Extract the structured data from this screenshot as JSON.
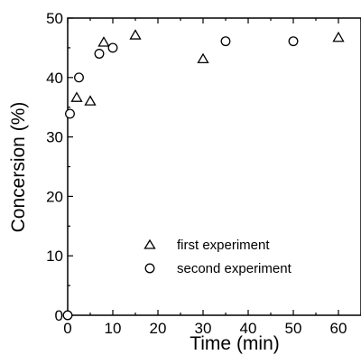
{
  "chart_data": {
    "type": "scatter",
    "title": "",
    "xlabel": "Time (min)",
    "ylabel": "Concersion (%)",
    "xlim": [
      0,
      65
    ],
    "ylim": [
      0,
      50
    ],
    "x_ticks": [
      0,
      10,
      20,
      30,
      40,
      50,
      60
    ],
    "y_ticks": [
      0,
      10,
      20,
      30,
      40,
      50
    ],
    "grid": false,
    "legend_position": "lower-center",
    "series": [
      {
        "name": "first experiment",
        "marker": "triangle",
        "points": [
          {
            "x": 2,
            "y": 36.6
          },
          {
            "x": 5,
            "y": 36.0
          },
          {
            "x": 8,
            "y": 45.9
          },
          {
            "x": 15,
            "y": 47.1
          },
          {
            "x": 30,
            "y": 43.1
          },
          {
            "x": 60,
            "y": 46.7
          }
        ]
      },
      {
        "name": "second experiment",
        "marker": "circle",
        "points": [
          {
            "x": 0,
            "y": 0
          },
          {
            "x": 0.5,
            "y": 33.9
          },
          {
            "x": 2.5,
            "y": 40.0
          },
          {
            "x": 7,
            "y": 44.0
          },
          {
            "x": 10,
            "y": 45.0
          },
          {
            "x": 35,
            "y": 46.1
          },
          {
            "x": 50,
            "y": 46.1
          }
        ]
      }
    ]
  }
}
